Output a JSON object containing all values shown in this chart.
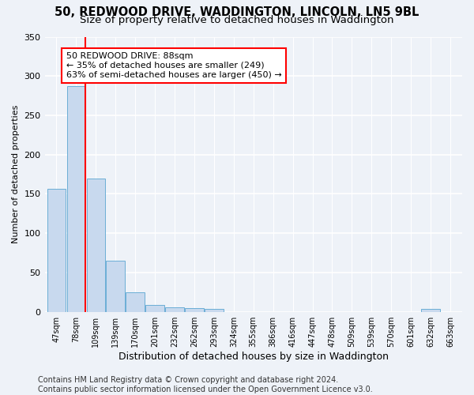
{
  "title": "50, REDWOOD DRIVE, WADDINGTON, LINCOLN, LN5 9BL",
  "subtitle": "Size of property relative to detached houses in Waddington",
  "xlabel": "Distribution of detached houses by size in Waddington",
  "ylabel": "Number of detached properties",
  "bar_color": "#c8d9ee",
  "bar_edge_color": "#6baed6",
  "background_color": "#eef2f8",
  "grid_color": "#ffffff",
  "categories": [
    "47sqm",
    "78sqm",
    "109sqm",
    "139sqm",
    "170sqm",
    "201sqm",
    "232sqm",
    "262sqm",
    "293sqm",
    "324sqm",
    "355sqm",
    "386sqm",
    "416sqm",
    "447sqm",
    "478sqm",
    "509sqm",
    "539sqm",
    "570sqm",
    "601sqm",
    "632sqm",
    "663sqm"
  ],
  "values": [
    157,
    287,
    170,
    65,
    25,
    9,
    6,
    5,
    4,
    0,
    0,
    0,
    0,
    0,
    0,
    0,
    0,
    0,
    0,
    4,
    0
  ],
  "ylim": [
    0,
    350
  ],
  "yticks": [
    0,
    50,
    100,
    150,
    200,
    250,
    300,
    350
  ],
  "red_line_x": 1.45,
  "annotation_text": "50 REDWOOD DRIVE: 88sqm\n← 35% of detached houses are smaller (249)\n63% of semi-detached houses are larger (450) →",
  "footer_text": "Contains HM Land Registry data © Crown copyright and database right 2024.\nContains public sector information licensed under the Open Government Licence v3.0.",
  "title_fontsize": 10.5,
  "subtitle_fontsize": 9.5,
  "annotation_fontsize": 8,
  "ylabel_fontsize": 8,
  "xlabel_fontsize": 9,
  "footer_fontsize": 7
}
